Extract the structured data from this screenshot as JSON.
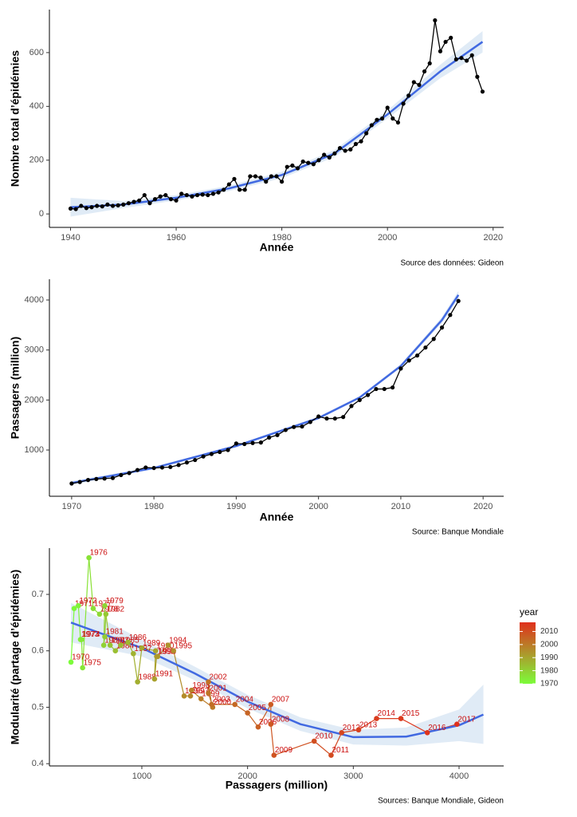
{
  "chart_data": [
    {
      "type": "line",
      "xlabel": "Année",
      "ylabel": "Nombre total d’épidémies",
      "source": "Source des données: Gideon",
      "color": "#000000",
      "x": [
        1940,
        1941,
        1942,
        1943,
        1944,
        1945,
        1946,
        1947,
        1948,
        1949,
        1950,
        1951,
        1952,
        1953,
        1954,
        1955,
        1956,
        1957,
        1958,
        1959,
        1960,
        1961,
        1962,
        1963,
        1964,
        1965,
        1966,
        1967,
        1968,
        1969,
        1970,
        1971,
        1972,
        1973,
        1974,
        1975,
        1976,
        1977,
        1978,
        1979,
        1980,
        1981,
        1982,
        1983,
        1984,
        1985,
        1986,
        1987,
        1988,
        1989,
        1990,
        1991,
        1992,
        1993,
        1994,
        1995,
        1996,
        1997,
        1998,
        1999,
        2000,
        2001,
        2002,
        2003,
        2004,
        2005,
        2006,
        2007,
        2008,
        2009,
        2010,
        2011,
        2012,
        2013,
        2014,
        2015,
        2016,
        2017,
        2018
      ],
      "values": [
        20,
        18,
        30,
        22,
        25,
        30,
        28,
        35,
        30,
        32,
        35,
        40,
        45,
        50,
        70,
        40,
        55,
        65,
        70,
        55,
        50,
        75,
        70,
        65,
        70,
        72,
        70,
        75,
        80,
        90,
        110,
        130,
        90,
        90,
        140,
        140,
        135,
        120,
        140,
        140,
        120,
        175,
        180,
        170,
        195,
        190,
        185,
        200,
        220,
        210,
        225,
        245,
        235,
        240,
        260,
        270,
        300,
        330,
        350,
        355,
        395,
        355,
        340,
        410,
        440,
        490,
        480,
        530,
        560,
        720,
        605,
        640,
        655,
        575,
        580,
        570,
        590,
        510,
        455
      ],
      "trend": {
        "color": "#4169e1",
        "band_color": "#c6dbef",
        "x": [
          1940,
          1950,
          1960,
          1970,
          1980,
          1990,
          2000,
          2010,
          2018
        ],
        "values": [
          25,
          35,
          60,
          95,
          145,
          225,
          370,
          530,
          640
        ],
        "lower": [
          -10,
          22,
          50,
          85,
          133,
          212,
          355,
          505,
          600
        ],
        "upper": [
          60,
          48,
          70,
          105,
          157,
          238,
          385,
          555,
          680
        ]
      },
      "xlim": [
        1936,
        2022
      ],
      "xticks": [
        1940,
        1960,
        1980,
        2000,
        2020
      ],
      "ylim": [
        -50,
        760
      ],
      "yticks": [
        0,
        200,
        400,
        600
      ]
    },
    {
      "type": "line",
      "xlabel": "Année",
      "ylabel": "Passagers (million)",
      "source": "Source: Banque Mondiale",
      "color": "#000000",
      "x": [
        1970,
        1971,
        1972,
        1973,
        1974,
        1975,
        1976,
        1977,
        1978,
        1979,
        1980,
        1981,
        1982,
        1983,
        1984,
        1985,
        1986,
        1987,
        1988,
        1989,
        1990,
        1991,
        1992,
        1993,
        1994,
        1995,
        1996,
        1997,
        1998,
        1999,
        2000,
        2001,
        2002,
        2003,
        2004,
        2005,
        2006,
        2007,
        2008,
        2009,
        2010,
        2011,
        2012,
        2013,
        2014,
        2015,
        2016,
        2017
      ],
      "values": [
        330,
        360,
        400,
        420,
        430,
        440,
        500,
        540,
        600,
        650,
        640,
        650,
        660,
        700,
        750,
        800,
        870,
        920,
        960,
        1000,
        1130,
        1120,
        1140,
        1150,
        1250,
        1300,
        1400,
        1460,
        1470,
        1560,
        1670,
        1630,
        1630,
        1660,
        1880,
        2000,
        2100,
        2220,
        2220,
        2250,
        2630,
        2790,
        2890,
        3050,
        3220,
        3450,
        3700,
        3980
      ],
      "trend": {
        "color": "#4169e1",
        "band_color": "#c6dbef",
        "x": [
          1970,
          1980,
          1990,
          2000,
          2005,
          2010,
          2015,
          2017
        ],
        "values": [
          340,
          640,
          1080,
          1640,
          2050,
          2680,
          3600,
          4100
        ],
        "lower": [
          300,
          615,
          1060,
          1615,
          2025,
          2645,
          3540,
          4020
        ],
        "upper": [
          380,
          665,
          1100,
          1665,
          2075,
          2715,
          3660,
          4180
        ]
      },
      "xlim": [
        1967.3,
        2022.5
      ],
      "xticks": [
        1970,
        1980,
        1990,
        2000,
        2010,
        2020
      ],
      "ylim": [
        75,
        4415
      ],
      "yticks": [
        1000,
        2000,
        3000,
        4000
      ]
    },
    {
      "type": "scatter",
      "xlabel": "Passagers (million)",
      "ylabel": "Modularité (partage d’épidémies)",
      "source": "Sources: Banque Mondiale, Gideon",
      "label_color": "#cc1010",
      "years": [
        1970,
        1971,
        1972,
        1973,
        1974,
        1975,
        1976,
        1977,
        1978,
        1979,
        1980,
        1981,
        1982,
        1983,
        1984,
        1985,
        1986,
        1987,
        1988,
        1989,
        1990,
        1991,
        1992,
        1993,
        1994,
        1995,
        1996,
        1997,
        1998,
        1999,
        2000,
        2001,
        2002,
        2003,
        2004,
        2005,
        2006,
        2007,
        2008,
        2009,
        2010,
        2011,
        2012,
        2013,
        2014,
        2015,
        2016,
        2017
      ],
      "x": [
        330,
        360,
        400,
        420,
        430,
        440,
        500,
        540,
        600,
        650,
        640,
        650,
        660,
        700,
        750,
        800,
        870,
        920,
        960,
        1000,
        1130,
        1120,
        1140,
        1150,
        1250,
        1300,
        1400,
        1460,
        1470,
        1560,
        1670,
        1630,
        1630,
        1660,
        1880,
        2000,
        2100,
        2220,
        2220,
        2250,
        2630,
        2790,
        2890,
        3050,
        3220,
        3450,
        3700,
        3980
      ],
      "values": [
        0.58,
        0.675,
        0.68,
        0.62,
        0.62,
        0.57,
        0.765,
        0.675,
        0.665,
        0.68,
        0.61,
        0.625,
        0.665,
        0.61,
        0.6,
        0.61,
        0.615,
        0.595,
        0.545,
        0.605,
        0.6,
        0.55,
        0.59,
        0.59,
        0.61,
        0.6,
        0.52,
        0.52,
        0.53,
        0.515,
        0.5,
        0.525,
        0.545,
        0.505,
        0.505,
        0.49,
        0.465,
        0.505,
        0.47,
        0.415,
        0.44,
        0.415,
        0.455,
        0.46,
        0.48,
        0.48,
        0.455,
        0.47
      ],
      "colorscale": {
        "title": "year",
        "low": "#7cfc3a",
        "high": "#e0301c",
        "lim": [
          1970,
          2017
        ],
        "ticks": [
          1970,
          1980,
          1990,
          2000,
          2010
        ]
      },
      "trend": {
        "color": "#4169e1",
        "band_color": "#c6dbef",
        "x": [
          330,
          1000,
          1500,
          2000,
          2500,
          3000,
          3500,
          4000,
          4230
        ],
        "values": [
          0.65,
          0.605,
          0.56,
          0.51,
          0.47,
          0.447,
          0.448,
          0.468,
          0.487
        ],
        "lower": [
          0.615,
          0.59,
          0.548,
          0.498,
          0.458,
          0.434,
          0.432,
          0.44,
          0.435
        ],
        "upper": [
          0.685,
          0.62,
          0.572,
          0.522,
          0.482,
          0.46,
          0.464,
          0.496,
          0.54
        ]
      },
      "xlim": [
        126,
        4422
      ],
      "xticks": [
        1000,
        2000,
        3000,
        4000
      ],
      "ylim": [
        0.396,
        0.782
      ],
      "yticks": [
        0.4,
        0.5,
        0.6,
        0.7
      ]
    }
  ]
}
